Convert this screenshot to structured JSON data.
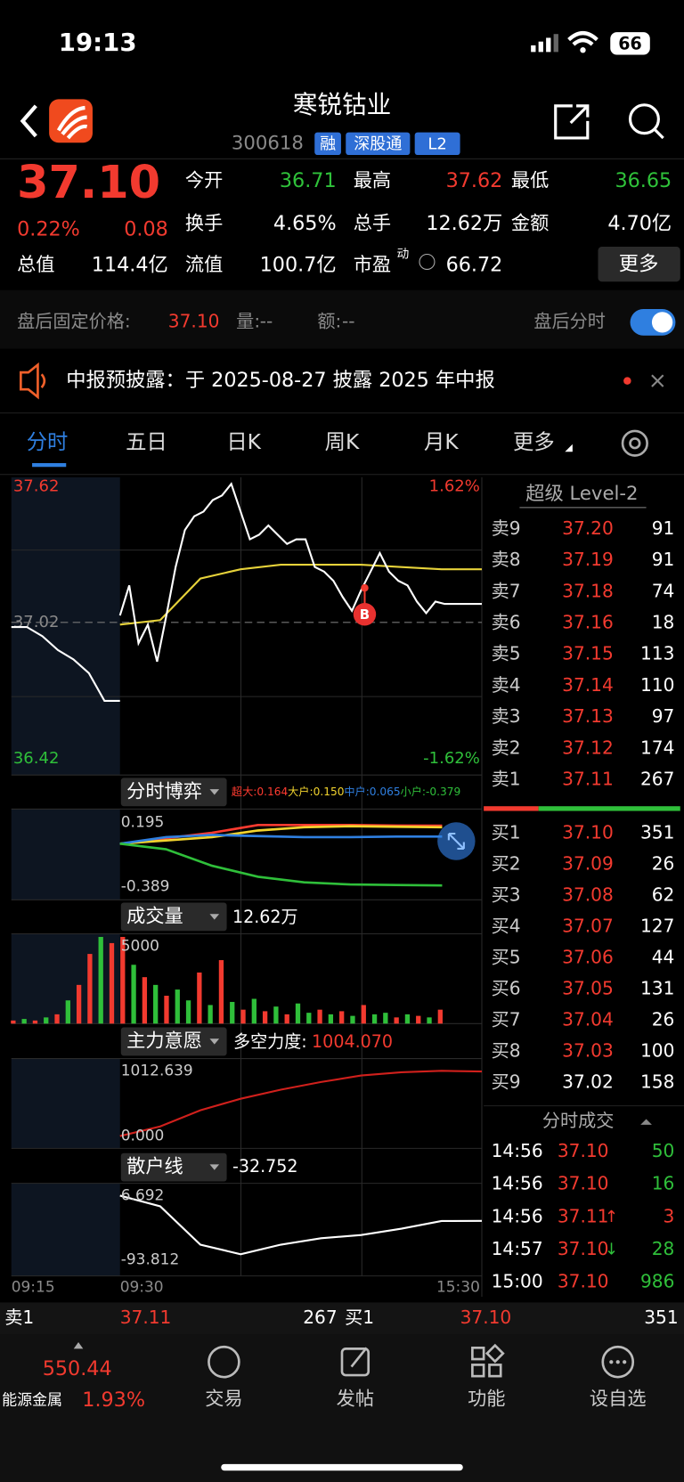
{
  "status_bar": {
    "time": "19:13",
    "battery": "66"
  },
  "header": {
    "title": "寒锐钴业",
    "code": "300618",
    "tags": [
      "融",
      "深股通",
      "L2"
    ]
  },
  "quote": {
    "price": "37.10",
    "change_pct": "0.22%",
    "change": "0.08",
    "more": "更多",
    "fields": [
      {
        "label": "今开",
        "value": "36.71",
        "color": "#2fc23a"
      },
      {
        "label": "最高",
        "value": "37.62",
        "color": "#f23a2f"
      },
      {
        "label": "最低",
        "value": "36.65",
        "color": "#2fc23a"
      },
      {
        "label": "换手",
        "value": "4.65%"
      },
      {
        "label": "总手",
        "value": "12.62万"
      },
      {
        "label": "金额",
        "value": "4.70亿"
      },
      {
        "label": "总值",
        "value": "114.4亿"
      },
      {
        "label": "流值",
        "value": "100.7亿"
      },
      {
        "label": "市盈",
        "sup": "动",
        "value": "66.72"
      }
    ]
  },
  "after_hours": {
    "label": "盘后固定价格:",
    "price": "37.10",
    "volume_label": "量:",
    "volume": "--",
    "amount_label": "额:",
    "amount": "--",
    "toggle_label": "盘后分时"
  },
  "notice": {
    "text": "中报预披露：于 2025-08-27 披露 2025 年中报"
  },
  "tabs": [
    "分时",
    "五日",
    "日K",
    "周K",
    "月K",
    "更多"
  ],
  "intraday": {
    "ylim": [
      36.42,
      37.62
    ],
    "yticks": [
      36.42,
      37.02,
      37.62
    ],
    "pct_ticks": [
      {
        "value": -1.62,
        "label": "-1.62%"
      },
      {
        "value": 1.62,
        "label": "1.62%"
      }
    ],
    "premarket": [
      37.0,
      37.0,
      36.96,
      36.9,
      36.86,
      36.8,
      36.68,
      36.68
    ],
    "price": [
      37.05,
      37.18,
      36.93,
      37.01,
      36.85,
      37.05,
      37.26,
      37.42,
      37.48,
      37.5,
      37.55,
      37.57,
      37.62,
      37.5,
      37.38,
      37.4,
      37.44,
      37.4,
      37.36,
      37.38,
      37.38,
      37.26,
      37.24,
      37.2,
      37.13,
      37.07,
      37.16,
      37.24,
      37.32,
      37.24,
      37.2,
      37.18,
      37.11,
      37.06,
      37.11,
      37.1,
      37.1,
      37.1,
      37.1,
      37.1
    ],
    "average": [
      37.01,
      37.03,
      37.21,
      37.25,
      37.27,
      37.27,
      37.27,
      37.26,
      37.25,
      37.25
    ],
    "buy_marker": "B",
    "times": [
      "09:15",
      "09:30",
      "15:30"
    ]
  },
  "game": {
    "label": "分时博弈",
    "ylim": [
      -0.389,
      0.195
    ],
    "yticks": [
      -0.389,
      0.195
    ],
    "series": [
      {
        "name": "超大:0.164",
        "color": "#ff3b30",
        "values": [
          0,
          0.05,
          0.1,
          0.17,
          0.17,
          0.17,
          0.165,
          0.164
        ]
      },
      {
        "name": "大户:0.150",
        "color": "#f2d42e",
        "values": [
          0,
          0.03,
          0.06,
          0.12,
          0.15,
          0.16,
          0.155,
          0.15
        ]
      },
      {
        "name": "中户:0.065",
        "color": "#2f7fe0",
        "values": [
          0,
          0.06,
          0.08,
          0.07,
          0.06,
          0.06,
          0.065,
          0.065
        ]
      },
      {
        "name": "小户:-0.379",
        "color": "#2fbf3a",
        "values": [
          0,
          -0.05,
          -0.2,
          -0.3,
          -0.35,
          -0.37,
          -0.375,
          -0.379
        ]
      }
    ]
  },
  "volume": {
    "label": "成交量",
    "total": "12.62万",
    "ylim": [
      0,
      5800
    ],
    "yticks": [
      5000
    ],
    "values": [
      200,
      300,
      200,
      400,
      600,
      1500,
      2500,
      4500,
      5600,
      5200,
      5600,
      3800,
      3000,
      2500,
      1800,
      2200,
      1500,
      3300,
      1200,
      4100,
      1400,
      900,
      1600,
      800,
      1100,
      600,
      1300,
      700,
      900,
      600,
      800,
      500,
      1200,
      600,
      700,
      400,
      600,
      500,
      400,
      900
    ],
    "colors": [
      "#f23a2f",
      "#2fbf3a",
      "#f23a2f",
      "#2fbf3a",
      "#f23a2f",
      "#2fbf3a",
      "#f23a2f",
      "#f23a2f",
      "#2fbf3a",
      "#f23a2f",
      "#f23a2f",
      "#2fbf3a",
      "#f23a2f",
      "#2fbf3a",
      "#f23a2f",
      "#2fbf3a",
      "#2fbf3a",
      "#f23a2f",
      "#2fbf3a",
      "#f23a2f",
      "#2fbf3a",
      "#f23a2f",
      "#2fbf3a",
      "#f23a2f",
      "#2fbf3a",
      "#f23a2f",
      "#2fbf3a",
      "#2fbf3a",
      "#f23a2f",
      "#2fbf3a",
      "#f23a2f",
      "#2fbf3a",
      "#f23a2f",
      "#2fbf3a",
      "#2fbf3a",
      "#f23a2f",
      "#2fbf3a",
      "#f23a2f",
      "#2fbf3a",
      "#f23a2f"
    ]
  },
  "intent": {
    "label": "主力意愿",
    "measure_label": "多空力度:",
    "measure": "1004.070",
    "color": "#d0201c",
    "ylim": [
      0,
      1012.639
    ],
    "yticks": [
      {
        "value": 0,
        "label": "0.000"
      },
      1012.639
    ],
    "values": [
      0,
      150,
      400,
      580,
      720,
      840,
      940,
      990,
      1012,
      1004.07
    ]
  },
  "retail": {
    "label": "散户线",
    "measure": "-32.752",
    "ylim": [
      -93.812,
      6.692
    ],
    "yticks": [
      -93.812,
      6.692
    ],
    "values": [
      6.692,
      -10,
      -70,
      -85,
      -70,
      -60,
      -55,
      -45,
      -33,
      -32.752
    ]
  },
  "order_book": {
    "title": "超级 Level-2",
    "asks": [
      {
        "label": "卖9",
        "price": "37.20",
        "volume": "91"
      },
      {
        "label": "卖8",
        "price": "37.19",
        "volume": "91"
      },
      {
        "label": "卖7",
        "price": "37.18",
        "volume": "74"
      },
      {
        "label": "卖6",
        "price": "37.16",
        "volume": "18"
      },
      {
        "label": "卖5",
        "price": "37.15",
        "volume": "113"
      },
      {
        "label": "卖4",
        "price": "37.14",
        "volume": "110"
      },
      {
        "label": "卖3",
        "price": "37.13",
        "volume": "97"
      },
      {
        "label": "卖2",
        "price": "37.12",
        "volume": "174"
      },
      {
        "label": "卖1",
        "price": "37.11",
        "volume": "267"
      }
    ],
    "bids": [
      {
        "label": "买1",
        "price": "37.10",
        "volume": "351"
      },
      {
        "label": "买2",
        "price": "37.09",
        "volume": "26"
      },
      {
        "label": "买3",
        "price": "37.08",
        "volume": "62"
      },
      {
        "label": "买4",
        "price": "37.07",
        "volume": "127"
      },
      {
        "label": "买5",
        "price": "37.06",
        "volume": "44"
      },
      {
        "label": "买6",
        "price": "37.05",
        "volume": "131"
      },
      {
        "label": "买7",
        "price": "37.04",
        "volume": "26"
      },
      {
        "label": "买8",
        "price": "37.03",
        "volume": "100"
      },
      {
        "label": "买9",
        "price": "37.02",
        "volume": "158"
      }
    ]
  },
  "trades": {
    "title": "分时成交",
    "rows": [
      {
        "time": "14:56",
        "price": "37.10",
        "volume": "50",
        "color": "#2fbf3a"
      },
      {
        "time": "14:56",
        "price": "37.10",
        "volume": "16",
        "color": "#2fbf3a"
      },
      {
        "time": "14:56",
        "price": "37.11",
        "arrow": "↑",
        "volume": "3",
        "color": "#f23a2f"
      },
      {
        "time": "14:57",
        "price": "37.10",
        "arrow": "↓",
        "volume": "28",
        "color": "#2fbf3a"
      },
      {
        "time": "15:00",
        "price": "37.10",
        "volume": "986",
        "color": "#2fbf3a"
      }
    ]
  },
  "bottom_quote": {
    "ask_label": "卖1",
    "ask_price": "37.11",
    "ask_volume": "267",
    "bid_label": "买1",
    "bid_price": "37.10",
    "bid_volume": "351"
  },
  "nav": {
    "index_value": "550.44",
    "index_name": "能源金属",
    "index_change": "1.93%",
    "items": [
      "交易",
      "发帖",
      "功能",
      "设自选"
    ]
  }
}
